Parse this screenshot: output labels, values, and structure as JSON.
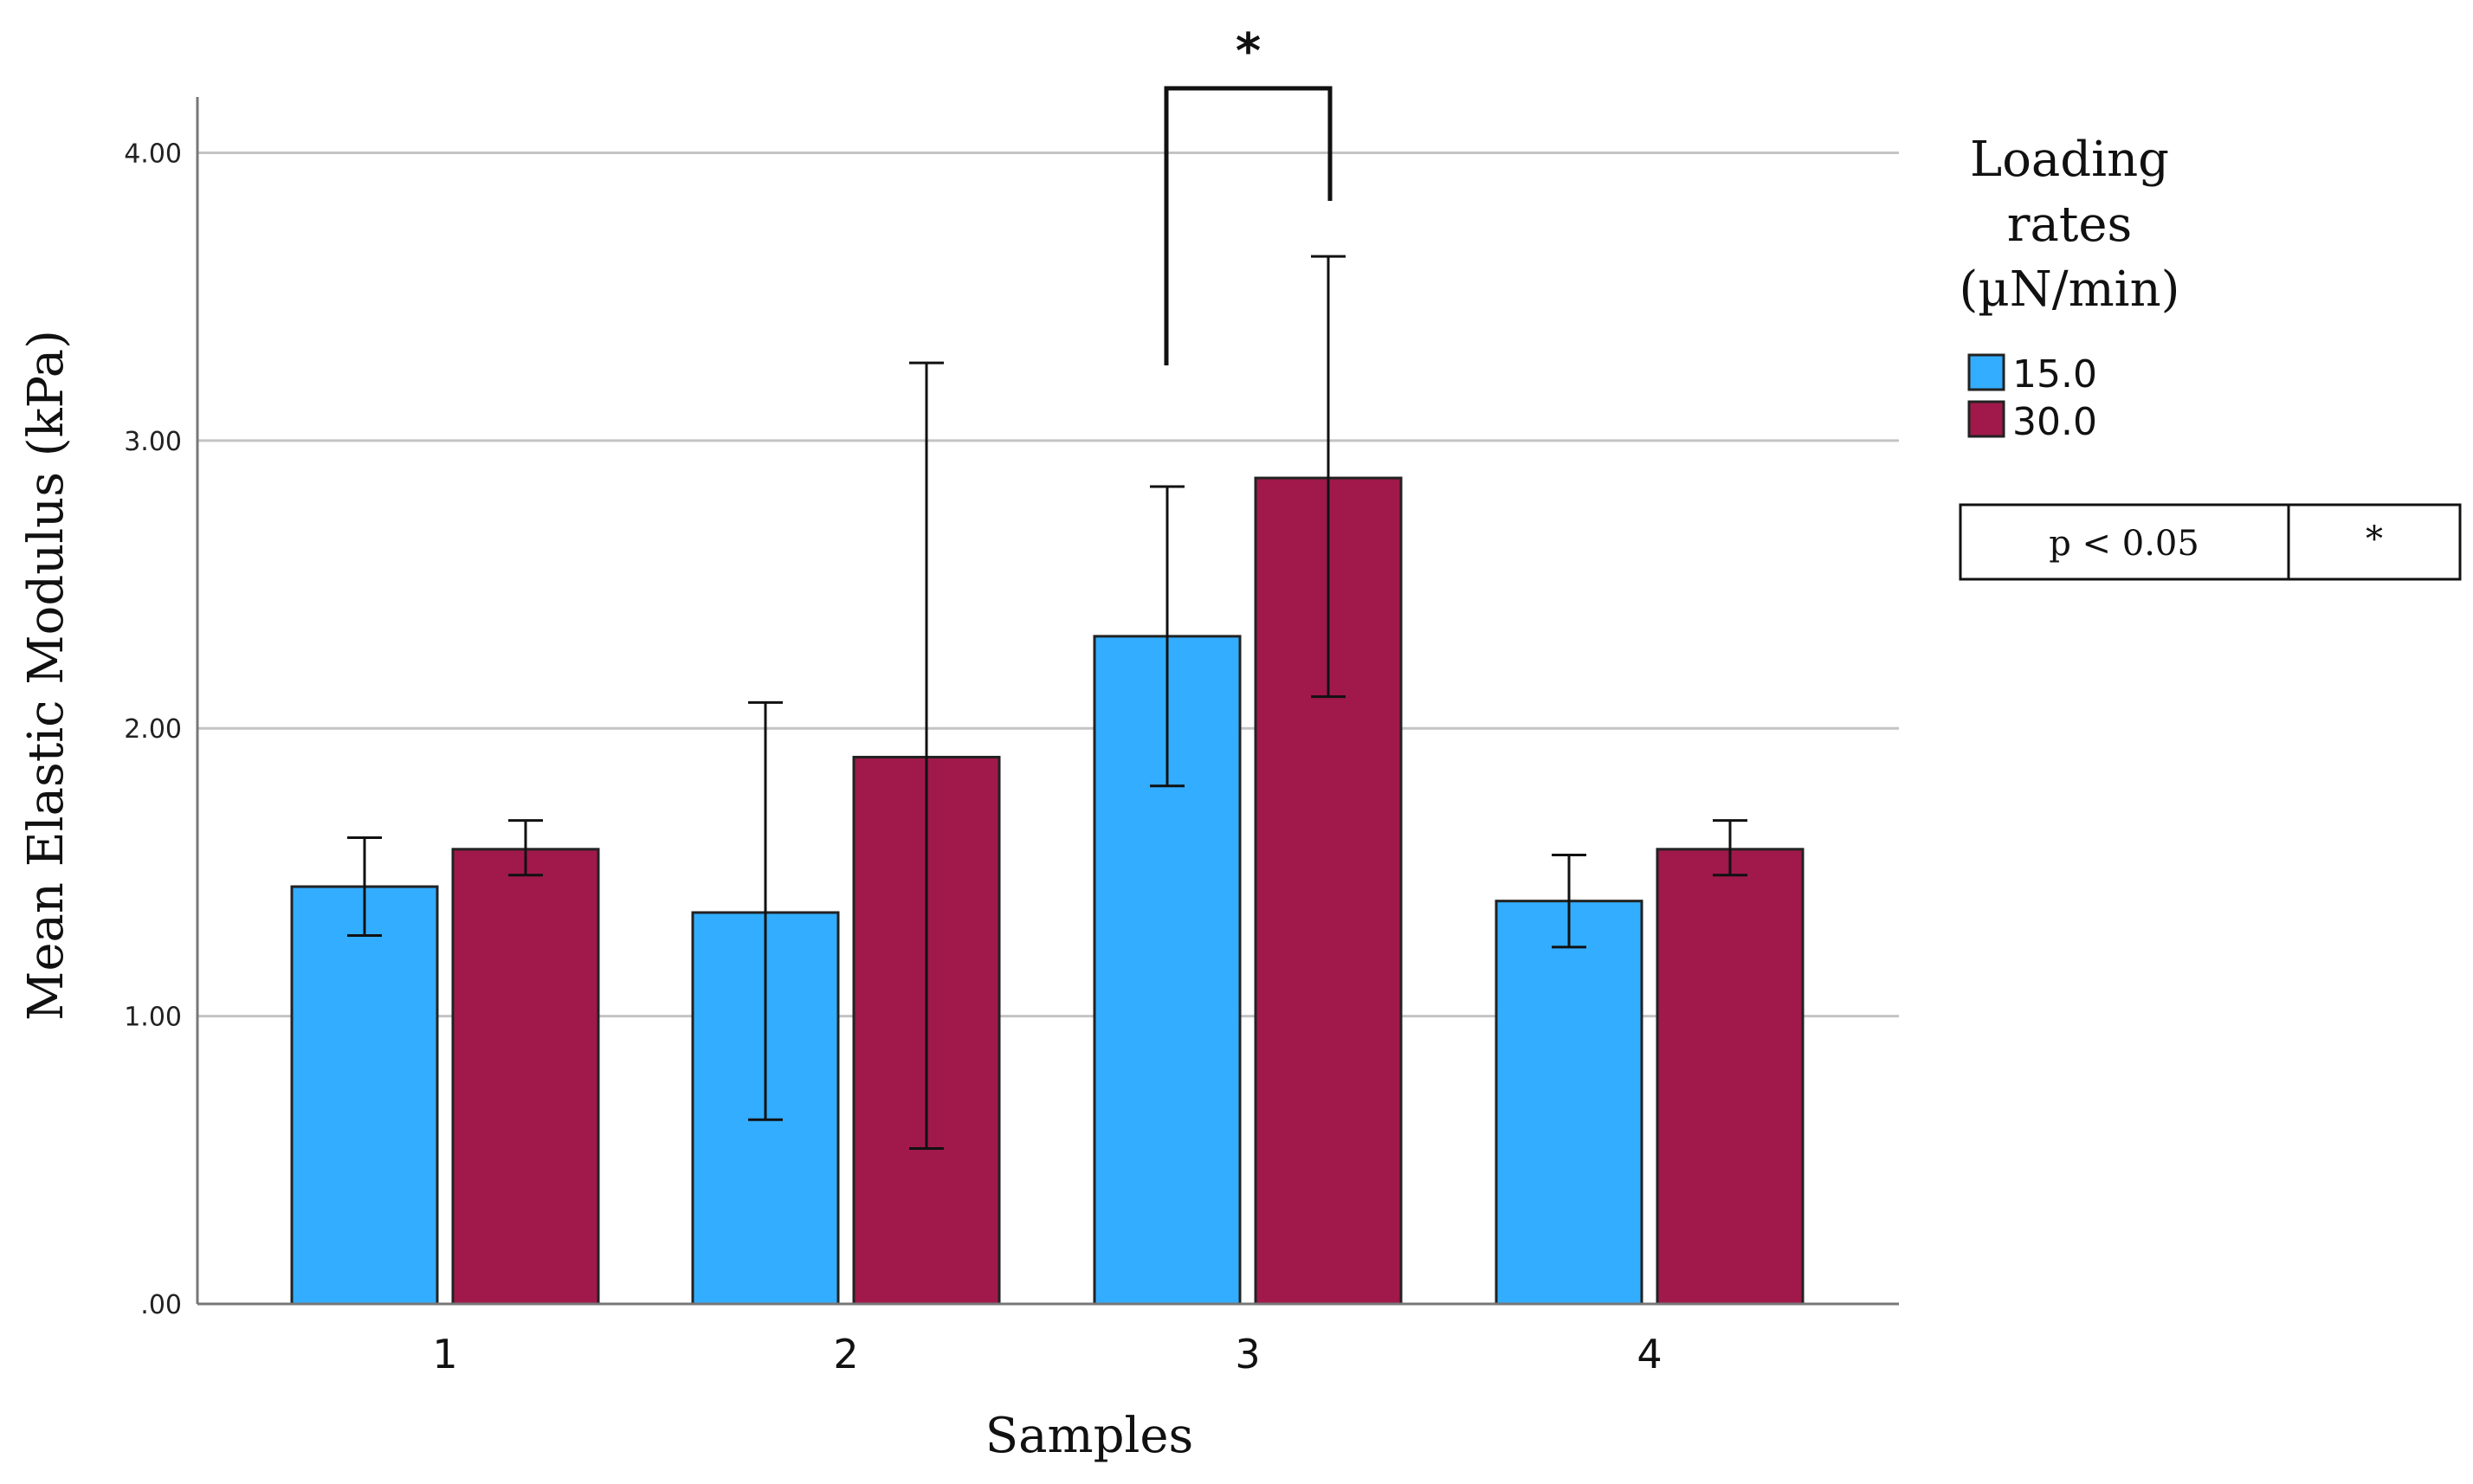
{
  "chart_data": {
    "type": "bar",
    "categories": [
      "1",
      "2",
      "3",
      "4"
    ],
    "series": [
      {
        "name": "15.0",
        "color": "#33adff",
        "values": [
          1.45,
          1.36,
          2.32,
          1.4
        ],
        "error_low": [
          1.28,
          0.64,
          1.8,
          1.24
        ],
        "error_high": [
          1.62,
          2.09,
          2.84,
          1.56
        ]
      },
      {
        "name": "30.0",
        "color": "#a0194a",
        "values": [
          1.58,
          1.9,
          2.87,
          1.58
        ],
        "error_low": [
          1.49,
          0.54,
          2.11,
          1.49
        ],
        "error_high": [
          1.68,
          3.27,
          3.64,
          1.68
        ]
      }
    ],
    "xlabel": "Samples",
    "ylabel": "Mean Elastic Modulus (kPa)",
    "ylim": [
      0,
      4.2
    ],
    "yticks": [
      ".00",
      "1.00",
      "2.00",
      "3.00",
      "4.00"
    ],
    "ytick_values": [
      0,
      1,
      2,
      3,
      4
    ],
    "grid": true,
    "legend": {
      "title_lines": [
        "Loading",
        "rates",
        "(µN/min)"
      ],
      "position": "right"
    },
    "significance": {
      "category_index": 2,
      "marker": "*",
      "table": {
        "label": "p < 0.05",
        "symbol": "*"
      }
    }
  }
}
